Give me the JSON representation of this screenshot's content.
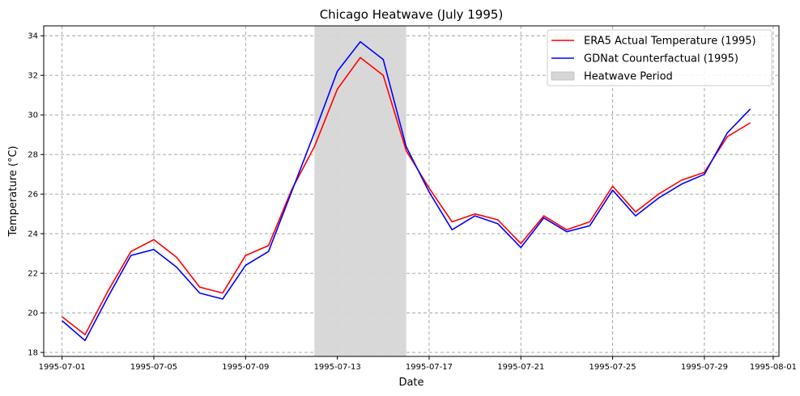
{
  "chart_data": {
    "type": "line",
    "title": "Chicago Heatwave (July 1995)",
    "xlabel": "Date",
    "ylabel": "Temperature (°C)",
    "x": [
      "1995-07-01",
      "1995-07-02",
      "1995-07-03",
      "1995-07-04",
      "1995-07-05",
      "1995-07-06",
      "1995-07-07",
      "1995-07-08",
      "1995-07-09",
      "1995-07-10",
      "1995-07-11",
      "1995-07-12",
      "1995-07-13",
      "1995-07-14",
      "1995-07-15",
      "1995-07-16",
      "1995-07-17",
      "1995-07-18",
      "1995-07-19",
      "1995-07-20",
      "1995-07-21",
      "1995-07-22",
      "1995-07-23",
      "1995-07-24",
      "1995-07-25",
      "1995-07-26",
      "1995-07-27",
      "1995-07-28",
      "1995-07-29",
      "1995-07-30",
      "1995-07-31"
    ],
    "series": [
      {
        "name": "ERA5 Actual Temperature (1995)",
        "color": "#ff0000",
        "values": [
          19.8,
          18.9,
          21.1,
          23.1,
          23.7,
          22.8,
          21.3,
          21.0,
          22.9,
          23.4,
          26.2,
          28.4,
          31.3,
          32.9,
          32.0,
          28.2,
          26.3,
          24.6,
          25.0,
          24.7,
          23.5,
          24.9,
          24.2,
          24.6,
          26.4,
          25.1,
          26.0,
          26.7,
          27.1,
          28.9,
          29.6
        ]
      },
      {
        "name": "GDNat Counterfactual (1995)",
        "color": "#0000ff",
        "values": [
          19.6,
          18.6,
          20.8,
          22.9,
          23.2,
          22.3,
          21.0,
          20.7,
          22.4,
          23.1,
          26.1,
          29.1,
          32.2,
          33.7,
          32.8,
          28.4,
          26.1,
          24.2,
          24.9,
          24.5,
          23.3,
          24.8,
          24.1,
          24.4,
          26.2,
          24.9,
          25.8,
          26.5,
          27.0,
          29.1,
          30.3
        ]
      }
    ],
    "shaded_region": {
      "label": "Heatwave Period",
      "x_start": "1995-07-12",
      "x_end": "1995-07-16",
      "color": "#d6d6d6"
    },
    "x_ticks": [
      "1995-07-01",
      "1995-07-05",
      "1995-07-09",
      "1995-07-13",
      "1995-07-17",
      "1995-07-21",
      "1995-07-25",
      "1995-07-29",
      "1995-08-01"
    ],
    "y_ticks": [
      18,
      20,
      22,
      24,
      26,
      28,
      30,
      32,
      34
    ],
    "xlim": [
      "1995-06-30",
      "1995-08-01"
    ],
    "ylim": [
      17.8,
      34.5
    ],
    "grid": true,
    "legend_position": "top-right"
  }
}
